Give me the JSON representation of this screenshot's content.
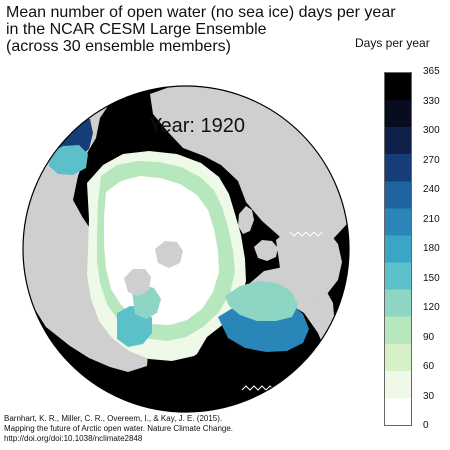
{
  "title": {
    "line1": "Mean number of open water (no sea ice) days per year",
    "line2": "in the NCAR CESM Large Ensemble",
    "line3": "(across 30 ensemble members)"
  },
  "map": {
    "year_label": "Year: 1920"
  },
  "legend": {
    "title": "Days per year",
    "range": [
      0,
      365
    ],
    "ticks": [
      "0",
      "30",
      "60",
      "90",
      "120",
      "150",
      "180",
      "210",
      "240",
      "270",
      "300",
      "330",
      "365"
    ],
    "colors": [
      "#ffffff",
      "#eef9e8",
      "#d6f1c8",
      "#b7e7bc",
      "#8dd6c4",
      "#5cc0ca",
      "#3aa6c7",
      "#2a85b8",
      "#1f64a0",
      "#173d78",
      "#10204a",
      "#070d1f",
      "#000000"
    ]
  },
  "citation": {
    "line1": "Barnhart, K. R., Miller, C. R., Overeem, I., & Kay, J. E. (2015).",
    "line2": "Mapping the future of Arctic open water. Nature Climate Change.",
    "line3": "http://doi.org/doi:10.1038/nclimate2848"
  }
}
